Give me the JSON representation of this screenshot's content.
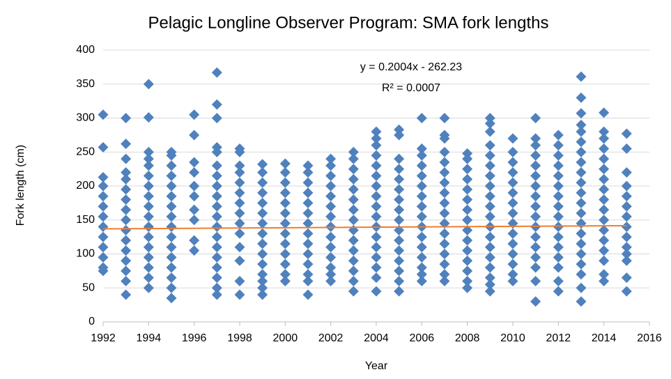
{
  "chart_data": {
    "type": "scatter",
    "title": "Pelagic Longline Observer Program: SMA fork lengths",
    "x_label": "Year",
    "y_label": "Fork length (cm)",
    "color": "#4f81bd",
    "grid": true,
    "xlim": [
      1992,
      2016
    ],
    "xticks": [
      1992,
      1994,
      1996,
      1998,
      2000,
      2002,
      2004,
      2006,
      2008,
      2010,
      2012,
      2014,
      2016
    ],
    "ylim": [
      0,
      400
    ],
    "yticks": [
      0,
      50,
      100,
      150,
      200,
      250,
      300,
      350,
      400
    ],
    "trendline": {
      "equation": "y = 0.2004x - 262.23",
      "r_squared_label": "R² = 0.0007",
      "slope": 0.2004,
      "intercept": -262.23,
      "color": "#ed7d31"
    },
    "series": [
      {
        "x": 1992,
        "values": [
          305,
          257,
          213,
          200,
          185,
          170,
          155,
          140,
          125,
          110,
          95,
          80,
          75
        ]
      },
      {
        "x": 1993,
        "values": [
          300,
          262,
          240,
          220,
          210,
          195,
          180,
          165,
          150,
          135,
          120,
          105,
          90,
          75,
          60,
          40
        ]
      },
      {
        "x": 1994,
        "values": [
          350,
          301,
          250,
          240,
          230,
          215,
          200,
          185,
          170,
          155,
          140,
          125,
          110,
          95,
          80,
          65,
          50
        ]
      },
      {
        "x": 1995,
        "values": [
          250,
          245,
          230,
          215,
          200,
          185,
          170,
          155,
          140,
          125,
          110,
          95,
          80,
          65,
          50,
          35
        ]
      },
      {
        "x": 1996,
        "values": [
          305,
          275,
          235,
          220,
          200,
          185,
          165,
          150,
          120,
          105
        ]
      },
      {
        "x": 1997,
        "values": [
          367,
          320,
          300,
          257,
          250,
          230,
          215,
          200,
          185,
          170,
          155,
          140,
          125,
          110,
          95,
          80,
          65,
          50,
          40
        ]
      },
      {
        "x": 1998,
        "values": [
          255,
          250,
          230,
          220,
          205,
          190,
          175,
          160,
          145,
          130,
          110,
          90,
          60,
          40
        ]
      },
      {
        "x": 1999,
        "values": [
          232,
          220,
          205,
          190,
          175,
          160,
          145,
          130,
          115,
          100,
          85,
          70,
          60,
          50,
          40
        ]
      },
      {
        "x": 2000,
        "values": [
          233,
          220,
          205,
          190,
          175,
          160,
          145,
          130,
          115,
          100,
          85,
          70,
          60
        ]
      },
      {
        "x": 2001,
        "values": [
          230,
          220,
          205,
          190,
          175,
          160,
          145,
          130,
          115,
          100,
          85,
          70,
          60,
          40
        ]
      },
      {
        "x": 2002,
        "values": [
          240,
          230,
          215,
          200,
          185,
          170,
          155,
          140,
          125,
          110,
          95,
          80,
          70,
          60
        ]
      },
      {
        "x": 2003,
        "values": [
          250,
          240,
          225,
          210,
          195,
          180,
          165,
          150,
          135,
          120,
          105,
          90,
          75,
          60,
          45
        ]
      },
      {
        "x": 2004,
        "values": [
          280,
          270,
          260,
          245,
          230,
          215,
          200,
          185,
          170,
          155,
          140,
          125,
          110,
          95,
          80,
          65,
          45
        ]
      },
      {
        "x": 2005,
        "values": [
          283,
          275,
          240,
          225,
          210,
          195,
          180,
          165,
          150,
          135,
          120,
          105,
          90,
          75,
          60,
          45
        ]
      },
      {
        "x": 2006,
        "values": [
          300,
          255,
          245,
          230,
          215,
          200,
          185,
          170,
          155,
          140,
          125,
          110,
          95,
          80,
          70,
          60
        ]
      },
      {
        "x": 2007,
        "values": [
          300,
          275,
          270,
          250,
          235,
          220,
          205,
          190,
          175,
          160,
          145,
          130,
          115,
          100,
          85,
          70,
          60
        ]
      },
      {
        "x": 2008,
        "values": [
          248,
          240,
          225,
          210,
          195,
          180,
          165,
          150,
          135,
          120,
          105,
          90,
          75,
          60,
          50
        ]
      },
      {
        "x": 2009,
        "values": [
          300,
          292,
          280,
          260,
          245,
          230,
          215,
          200,
          185,
          170,
          155,
          140,
          125,
          110,
          95,
          80,
          65,
          55,
          45
        ]
      },
      {
        "x": 2010,
        "values": [
          270,
          250,
          235,
          220,
          205,
          190,
          175,
          160,
          145,
          130,
          115,
          100,
          85,
          70,
          60
        ]
      },
      {
        "x": 2011,
        "values": [
          300,
          270,
          260,
          245,
          230,
          215,
          200,
          185,
          170,
          155,
          140,
          125,
          110,
          95,
          80,
          60,
          30
        ]
      },
      {
        "x": 2012,
        "values": [
          275,
          260,
          245,
          230,
          215,
          200,
          185,
          170,
          155,
          140,
          125,
          110,
          95,
          80,
          60,
          45
        ]
      },
      {
        "x": 2013,
        "values": [
          361,
          330,
          307,
          290,
          280,
          265,
          250,
          235,
          220,
          205,
          190,
          175,
          160,
          145,
          130,
          115,
          100,
          85,
          70,
          50,
          30
        ]
      },
      {
        "x": 2014,
        "values": [
          308,
          280,
          270,
          255,
          240,
          225,
          210,
          195,
          180,
          165,
          150,
          135,
          120,
          105,
          90,
          70,
          60
        ]
      },
      {
        "x": 2015,
        "values": [
          277,
          255,
          220,
          200,
          185,
          170,
          155,
          140,
          125,
          110,
          100,
          90,
          65,
          45
        ]
      }
    ]
  }
}
